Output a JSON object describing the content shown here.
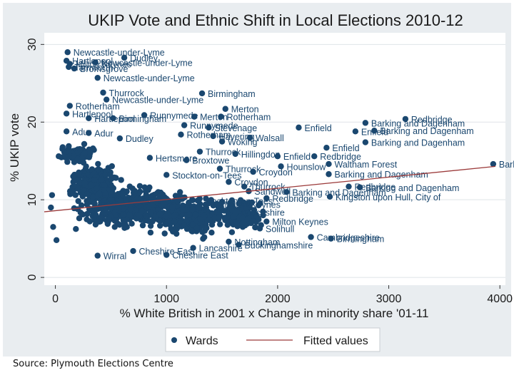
{
  "chart_data": {
    "type": "scatter",
    "title": "UKIP Vote and Ethnic Shift in Local Elections 2010-12",
    "xlabel": "% White British in 2001 x Change in minority share '01-11",
    "ylabel": "% UKIP vote",
    "xlim": [
      -100,
      4050
    ],
    "ylim": [
      -1,
      31.5
    ],
    "xticks": [
      0,
      1000,
      2000,
      3000,
      4000
    ],
    "yticks": [
      0,
      10,
      20,
      30
    ],
    "grid": true,
    "legend_position": "bottom",
    "series": [
      {
        "name": "Wards",
        "type": "scatter",
        "color": "#1a476f",
        "points": [
          {
            "x": 110,
            "y": 29.0,
            "label": "Newcastle-under-Lyme"
          },
          {
            "x": 620,
            "y": 28.3,
            "label": "Dudley"
          },
          {
            "x": 100,
            "y": 27.9,
            "label": "Hartlepool"
          },
          {
            "x": 360,
            "y": 27.7,
            "label": "Newcastle-under-Lyme"
          },
          {
            "x": 130,
            "y": 27.5,
            "label": "Milton Keynes"
          },
          {
            "x": 120,
            "y": 27.1,
            "label": "Tamworth"
          },
          {
            "x": 170,
            "y": 26.9,
            "label": "Bromsgrove"
          },
          {
            "x": 380,
            "y": 25.7,
            "label": "Newcastle-under-Lyme"
          },
          {
            "x": 430,
            "y": 23.8,
            "label": "Thurrock"
          },
          {
            "x": 1320,
            "y": 23.7,
            "label": "Birmingham"
          },
          {
            "x": 460,
            "y": 22.9,
            "label": "Newcastle-under-Lyme"
          },
          {
            "x": 130,
            "y": 22.1,
            "label": "Rotherham"
          },
          {
            "x": 1530,
            "y": 21.7,
            "label": "Merton"
          },
          {
            "x": 100,
            "y": 21.1,
            "label": "Hartlepool"
          },
          {
            "x": 800,
            "y": 20.9,
            "label": "Runnymede"
          },
          {
            "x": 1250,
            "y": 20.7,
            "label": "Merton"
          },
          {
            "x": 1490,
            "y": 20.7,
            "label": "Rotherham"
          },
          {
            "x": 300,
            "y": 20.5,
            "label": "Hartlepool"
          },
          {
            "x": 520,
            "y": 20.5,
            "label": "Birmingham"
          },
          {
            "x": 3150,
            "y": 20.4,
            "label": "Redbridge"
          },
          {
            "x": 2790,
            "y": 19.9,
            "label": "Barking and Dagenham"
          },
          {
            "x": 1160,
            "y": 19.6,
            "label": "Runnymede"
          },
          {
            "x": 1380,
            "y": 19.3,
            "label": "Stevenage"
          },
          {
            "x": 2190,
            "y": 19.3,
            "label": "Enfield"
          },
          {
            "x": 2700,
            "y": 18.8,
            "label": "Enfield"
          },
          {
            "x": 2870,
            "y": 18.9,
            "label": "Barking and Dagenham"
          },
          {
            "x": 100,
            "y": 18.8,
            "label": "Adur"
          },
          {
            "x": 300,
            "y": 18.6,
            "label": "Adur"
          },
          {
            "x": 1130,
            "y": 18.4,
            "label": "Rotherham"
          },
          {
            "x": 1420,
            "y": 18.2,
            "label": "Havering"
          },
          {
            "x": 1750,
            "y": 18.0,
            "label": "Walsall"
          },
          {
            "x": 580,
            "y": 17.9,
            "label": "Dudley"
          },
          {
            "x": 1500,
            "y": 17.5,
            "label": "Woking"
          },
          {
            "x": 2790,
            "y": 17.4,
            "label": "Barking and Dagenham"
          },
          {
            "x": 2440,
            "y": 16.7,
            "label": "Enfield"
          },
          {
            "x": 1300,
            "y": 16.2,
            "label": "Thurrock"
          },
          {
            "x": 1620,
            "y": 15.9,
            "label": "Hillingdon"
          },
          {
            "x": 2000,
            "y": 15.6,
            "label": "Enfield"
          },
          {
            "x": 2330,
            "y": 15.6,
            "label": "Redbridge"
          },
          {
            "x": 850,
            "y": 15.4,
            "label": "Hertsmere"
          },
          {
            "x": 1180,
            "y": 15.1,
            "label": "Broxtowe"
          },
          {
            "x": 2460,
            "y": 14.6,
            "label": "Waltham Forest"
          },
          {
            "x": 3940,
            "y": 14.6,
            "label": "Barking and Dagenham"
          },
          {
            "x": 2030,
            "y": 14.3,
            "label": "Hounslow"
          },
          {
            "x": 1480,
            "y": 14.0,
            "label": "Thurrock"
          },
          {
            "x": 1780,
            "y": 13.6,
            "label": "Croydon"
          },
          {
            "x": 2460,
            "y": 13.3,
            "label": "Barking and Dagenham"
          },
          {
            "x": 1000,
            "y": 13.2,
            "label": "Stockton-on-Tees"
          },
          {
            "x": 1560,
            "y": 12.3,
            "label": "Croydon"
          },
          {
            "x": 1700,
            "y": 11.7,
            "label": "Thurrock"
          },
          {
            "x": 2640,
            "y": 11.7,
            "label": "Redbridge"
          },
          {
            "x": 2740,
            "y": 11.6,
            "label": "Barking and Dagenham"
          },
          {
            "x": 1740,
            "y": 11.1,
            "label": "Sandwell"
          },
          {
            "x": 2080,
            "y": 11.0,
            "label": "Barking and Dagenham"
          },
          {
            "x": 2470,
            "y": 10.4,
            "label": "Kingston upon Hull, City of"
          },
          {
            "x": 1900,
            "y": 10.2,
            "label": "Redbridge"
          },
          {
            "x": 1280,
            "y": 9.9,
            "label": "Stockton-on-Tees"
          },
          {
            "x": 1470,
            "y": 9.4,
            "label": "Milton Keynes"
          },
          {
            "x": 1620,
            "y": 8.4,
            "label": "Lancashire"
          },
          {
            "x": 1900,
            "y": 7.2,
            "label": "Milton Keynes"
          },
          {
            "x": 1840,
            "y": 6.3,
            "label": "Solihull"
          },
          {
            "x": 2300,
            "y": 5.2,
            "label": "Cambridgeshire"
          },
          {
            "x": 2480,
            "y": 5.0,
            "label": "Birmingham"
          },
          {
            "x": 1560,
            "y": 4.6,
            "label": "Nottingham"
          },
          {
            "x": 1650,
            "y": 4.2,
            "label": "Buckinghamshire"
          },
          {
            "x": 1240,
            "y": 3.8,
            "label": "Lancashire"
          },
          {
            "x": 700,
            "y": 3.4,
            "label": "Cheshire East"
          },
          {
            "x": 1000,
            "y": 2.9,
            "label": "Cheshire East"
          },
          {
            "x": 380,
            "y": 2.8,
            "label": "Wirral"
          },
          {
            "x": -40,
            "y": 9.0,
            "label": ""
          },
          {
            "x": -20,
            "y": 6.5,
            "label": ""
          },
          {
            "x": 10,
            "y": 4.8,
            "label": ""
          },
          {
            "x": -30,
            "y": 10.6,
            "label": ""
          },
          {
            "x": 30,
            "y": 15.6,
            "label": ""
          }
        ]
      },
      {
        "name": "Fitted values",
        "type": "line",
        "color": "#9c3b3b",
        "x": [
          -100,
          3960
        ],
        "y": [
          8.45,
          14.3
        ]
      }
    ],
    "legend": [
      "Wards",
      "Fitted values"
    ]
  },
  "source_text": "Source: Plymouth Elections Centre"
}
